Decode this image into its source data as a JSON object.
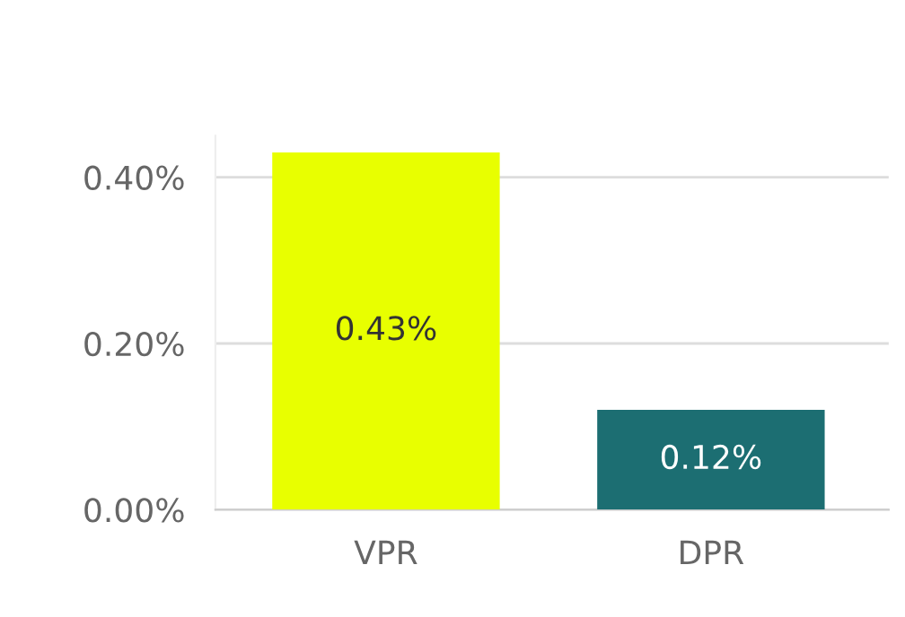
{
  "chart_data": {
    "type": "bar",
    "categories": [
      "VPR",
      "DPR"
    ],
    "values": [
      0.43,
      0.12
    ],
    "colors": [
      "#e8ff00",
      "#1c6e72"
    ],
    "value_labels": [
      "0.43%",
      "0.12%"
    ],
    "ylim": [
      0,
      0.45
    ],
    "yticks": [
      {
        "value": 0,
        "label": "0.00%"
      },
      {
        "value": 0.2,
        "label": "0.20%"
      },
      {
        "value": 0.4,
        "label": "0.40%"
      }
    ],
    "grid": "y",
    "legend": false
  }
}
